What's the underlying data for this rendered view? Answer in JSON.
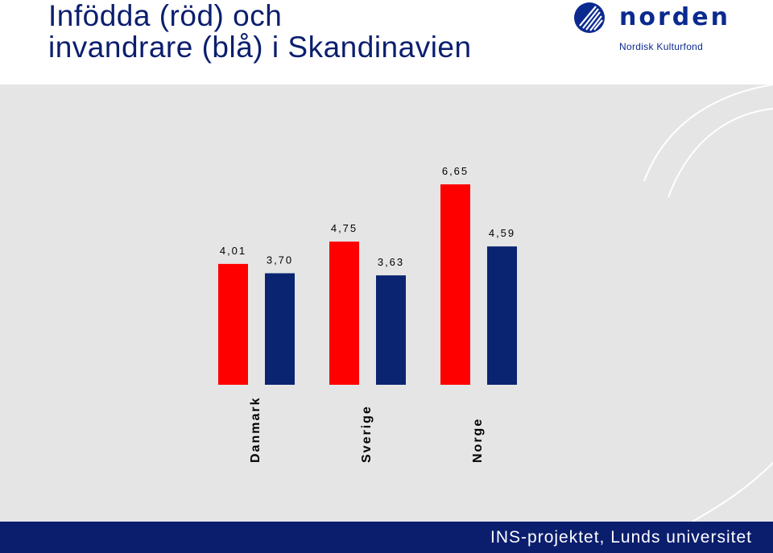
{
  "title_lines": [
    "Infödda (röd) och",
    "invandrare (blå) i Skandinavien"
  ],
  "logo": {
    "wordmark": "norden",
    "subtitle": "Nordisk Kulturfond"
  },
  "footer": {
    "text": "INS-projektet, Lunds universitet"
  },
  "colors": {
    "title": "#0b1e6e",
    "natives": "#ff0000",
    "immigrants": "#0a2472",
    "panel": "#e5e5e5",
    "footer": "#0b1e6e"
  },
  "chart_data": {
    "type": "bar",
    "categories": [
      "Danmark",
      "Sverige",
      "Norge"
    ],
    "series": [
      {
        "key": "natives",
        "color": "#ff0000",
        "values": [
          4.01,
          4.75,
          6.65
        ],
        "labels": [
          "4,01",
          "4,75",
          "6,65"
        ]
      },
      {
        "key": "immigrants",
        "color": "#0a2472",
        "values": [
          3.7,
          3.63,
          4.59
        ],
        "labels": [
          "3,70",
          "3,63",
          "4,59"
        ]
      }
    ],
    "ylim": [
      0,
      7
    ],
    "grid": false
  }
}
